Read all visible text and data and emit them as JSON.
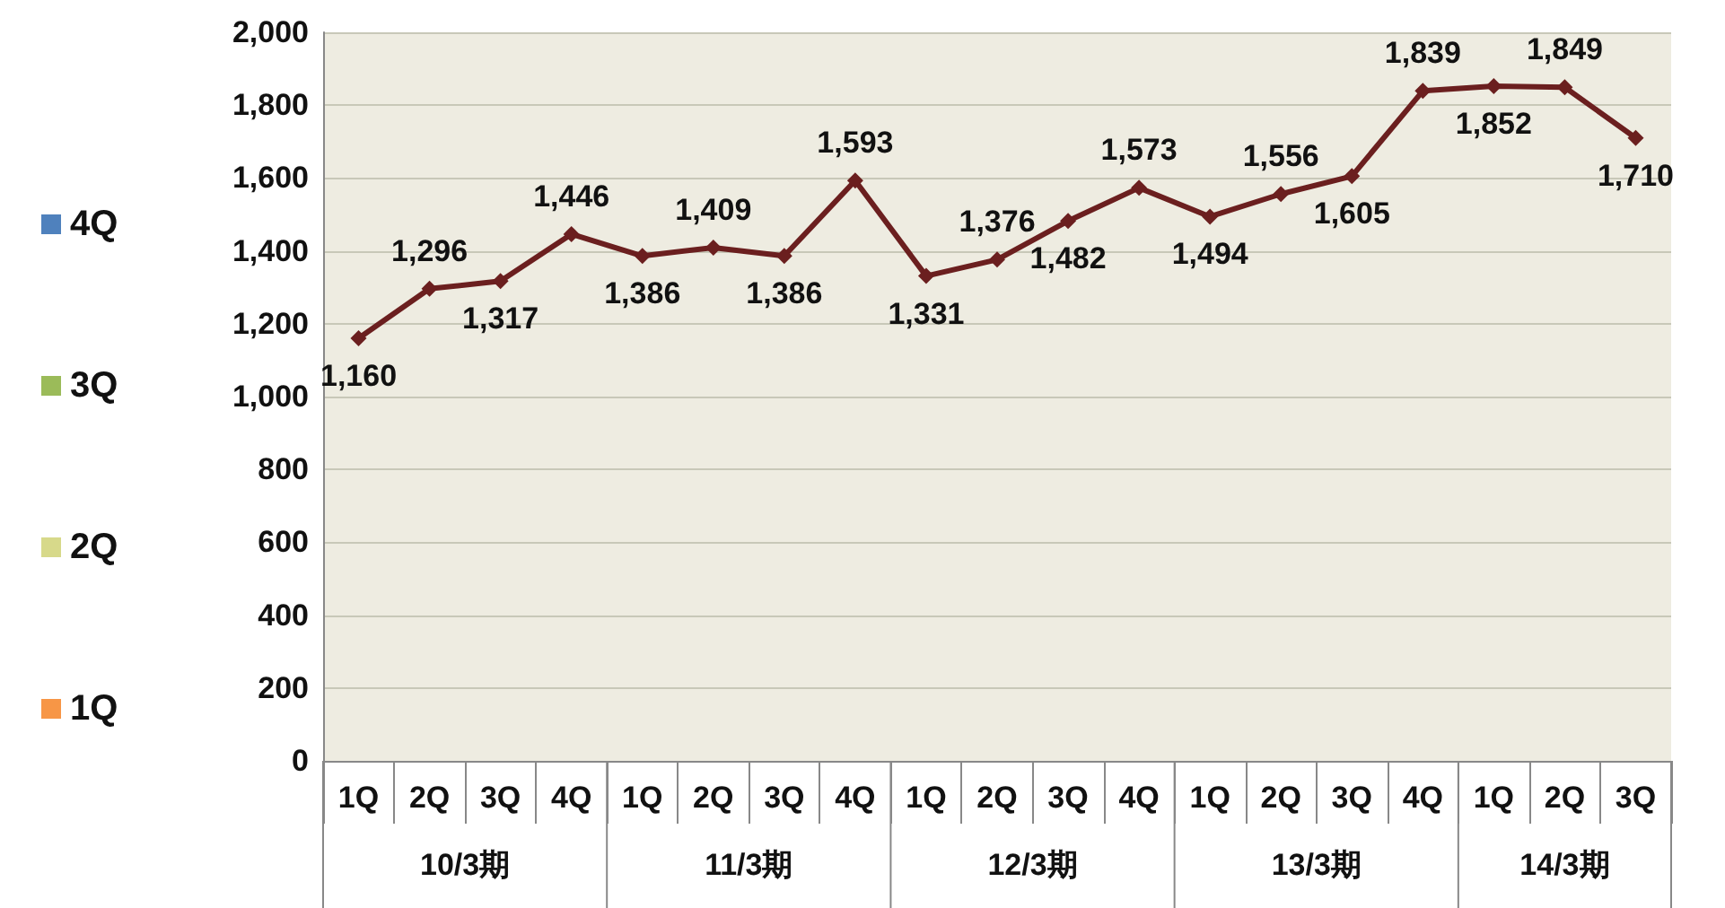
{
  "chart_data": {
    "type": "line",
    "categories": [
      "1Q",
      "2Q",
      "3Q",
      "4Q",
      "1Q",
      "2Q",
      "3Q",
      "4Q",
      "1Q",
      "2Q",
      "3Q",
      "4Q",
      "1Q",
      "2Q",
      "3Q",
      "4Q",
      "1Q",
      "2Q",
      "3Q"
    ],
    "series": [
      {
        "type": "bar",
        "name": "4Q",
        "color": "#4f81bd",
        "values": [
          null,
          null,
          null,
          null,
          null,
          null,
          null,
          null,
          null,
          null,
          null,
          null,
          null,
          null,
          null,
          null,
          null,
          null,
          null
        ]
      },
      {
        "type": "bar",
        "name": "3Q",
        "color": "#9bbb59",
        "values": [
          null,
          null,
          null,
          null,
          null,
          null,
          null,
          null,
          null,
          null,
          null,
          null,
          null,
          null,
          null,
          null,
          null,
          null,
          null
        ]
      },
      {
        "type": "bar",
        "name": "2Q",
        "color": "#d7d98a",
        "values": [
          null,
          null,
          null,
          null,
          null,
          null,
          null,
          null,
          null,
          null,
          null,
          null,
          null,
          null,
          null,
          null,
          null,
          null,
          null
        ]
      },
      {
        "type": "bar",
        "name": "1Q",
        "color": "#f79646",
        "values": [
          null,
          null,
          null,
          null,
          null,
          null,
          null,
          null,
          null,
          null,
          null,
          null,
          null,
          null,
          null,
          null,
          null,
          null,
          null
        ]
      },
      {
        "color": "#6b1f1f",
        "values": [
          1160,
          1296,
          1317,
          1446,
          1386,
          1409,
          1386,
          1593,
          1331,
          1376,
          1482,
          1573,
          1494,
          1556,
          1605,
          1839,
          1852,
          1849,
          1710
        ],
        "value_labels": [
          "1,160",
          "1,296",
          "1,317",
          "1,446",
          "1,386",
          "1,409",
          "1,386",
          "1,593",
          "1,331",
          "1,376",
          "1,482",
          "1,573",
          "1,494",
          "1,556",
          "1,605",
          "1,839",
          "1,852",
          "1,849",
          "1,710"
        ]
      }
    ],
    "annotations": [
      "10/3期",
      "11/3期",
      "12/3期",
      "13/3期",
      "14/3期"
    ],
    "ylim": [
      0,
      2000
    ],
    "yticks": [
      0,
      200,
      400,
      600,
      800,
      {
        "value": 1000,
        "label": "1,000"
      },
      {
        "value": 1200,
        "label": "1,200"
      },
      {
        "value": 1400,
        "label": "1,400"
      },
      {
        "value": 1600,
        "label": "1,600"
      },
      {
        "value": 1800,
        "label": "1,800"
      },
      {
        "value": 2000,
        "label": "2,000"
      }
    ],
    "grid": "y",
    "legend": "left",
    "marker": "diamond",
    "line_style": "solid"
  }
}
